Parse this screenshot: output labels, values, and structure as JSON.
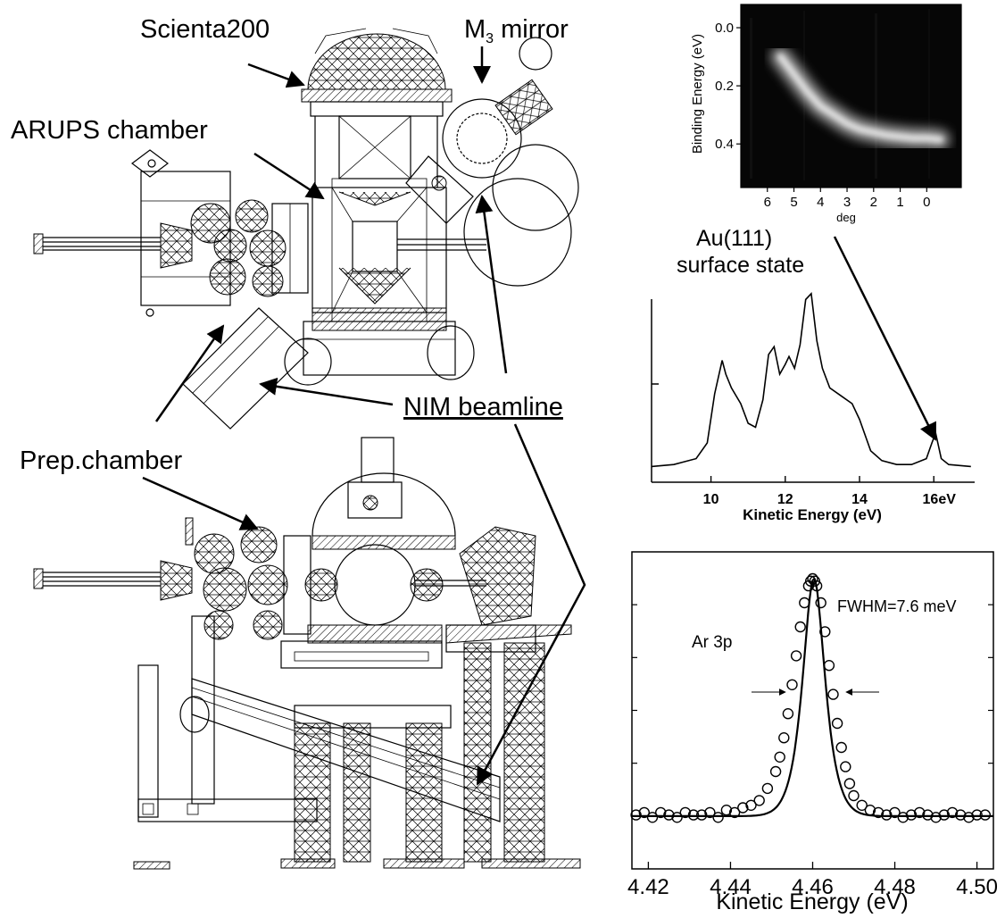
{
  "labels": {
    "scienta": "Scienta200",
    "m3_main": "M",
    "m3_sub": "3",
    "m3_rest": " mirror",
    "arups": "ARUPS chamber",
    "prep": "Prep.chamber",
    "nim": "NIM beamline",
    "au_line1": "Au(111)",
    "au_line2": "surface state",
    "ar3p": "Ar 3p",
    "fwhm": "FWHM=7.6 meV"
  },
  "chart_data": [
    {
      "type": "heatmap",
      "title": "",
      "xlabel": "deg",
      "ylabel": "Binding Energy (eV)",
      "x_ticks": [
        "6",
        "5",
        "4",
        "3",
        "2",
        "1",
        "0"
      ],
      "y_ticks": [
        "0.0",
        "0.2",
        "0.4"
      ],
      "xlim": [
        7,
        -1.3
      ],
      "ylim": [
        -0.08,
        0.55
      ],
      "band": {
        "angle_deg": [
          5.5,
          5.0,
          4.5,
          4.0,
          3.5,
          3.0,
          2.5,
          2.0,
          1.5,
          1.0,
          0.5,
          0.0,
          -0.5
        ],
        "binding_energy_eV": [
          0.1,
          0.16,
          0.22,
          0.27,
          0.3,
          0.33,
          0.35,
          0.36,
          0.37,
          0.375,
          0.38,
          0.38,
          0.385
        ]
      }
    },
    {
      "type": "line",
      "title": "",
      "xlabel": "Kinetic Energy (eV)",
      "x_ticks": [
        "10",
        "12",
        "14",
        "16eV"
      ],
      "xlim": [
        8.4,
        17.1
      ],
      "ylim": [
        0,
        1
      ],
      "series": [
        {
          "x": [
            8.4,
            9.0,
            9.6,
            9.9,
            10.1,
            10.3,
            10.4,
            10.55,
            10.8,
            11.0,
            11.2,
            11.4,
            11.55,
            11.7,
            11.85,
            12.0,
            12.1,
            12.25,
            12.4,
            12.55,
            12.7,
            12.85,
            13.0,
            13.2,
            13.5,
            13.8,
            14.0,
            14.3,
            14.6,
            15.0,
            15.4,
            15.8,
            15.95,
            16.05,
            16.2,
            16.4,
            17.0
          ],
          "y": [
            0.08,
            0.09,
            0.12,
            0.2,
            0.45,
            0.62,
            0.55,
            0.48,
            0.4,
            0.3,
            0.28,
            0.42,
            0.65,
            0.69,
            0.55,
            0.6,
            0.64,
            0.58,
            0.7,
            0.93,
            0.96,
            0.72,
            0.58,
            0.48,
            0.44,
            0.4,
            0.32,
            0.16,
            0.11,
            0.09,
            0.09,
            0.12,
            0.2,
            0.25,
            0.12,
            0.09,
            0.08
          ]
        }
      ]
    },
    {
      "type": "scatter",
      "title": "",
      "xlabel": "Kinetic Energy (eV)",
      "x_ticks": [
        "4.42",
        "4.44",
        "4.46",
        "4.48",
        "4.50"
      ],
      "xlim": [
        4.416,
        4.504
      ],
      "ylim": [
        0,
        1
      ],
      "peak_center": 4.4603,
      "fwhm_meV": 7.6,
      "points_x": [
        4.417,
        4.419,
        4.421,
        4.423,
        4.425,
        4.427,
        4.429,
        4.431,
        4.433,
        4.435,
        4.437,
        4.439,
        4.441,
        4.443,
        4.445,
        4.447,
        4.449,
        4.451,
        4.452,
        4.453,
        4.454,
        4.455,
        4.456,
        4.457,
        4.458,
        4.459,
        4.4595,
        4.46,
        4.4605,
        4.461,
        4.462,
        4.463,
        4.464,
        4.465,
        4.466,
        4.467,
        4.468,
        4.469,
        4.47,
        4.472,
        4.474,
        4.476,
        4.478,
        4.48,
        4.482,
        4.484,
        4.486,
        4.488,
        4.49,
        4.492,
        4.494,
        4.496,
        4.498,
        4.5,
        4.502
      ],
      "points_y": [
        0.02,
        0.03,
        0.01,
        0.03,
        0.02,
        0.01,
        0.03,
        0.02,
        0.02,
        0.03,
        0.01,
        0.04,
        0.03,
        0.05,
        0.06,
        0.08,
        0.13,
        0.2,
        0.26,
        0.34,
        0.44,
        0.56,
        0.68,
        0.8,
        0.9,
        0.97,
        0.99,
        1.0,
        0.99,
        0.97,
        0.9,
        0.78,
        0.64,
        0.52,
        0.4,
        0.3,
        0.22,
        0.15,
        0.1,
        0.06,
        0.04,
        0.03,
        0.02,
        0.03,
        0.01,
        0.02,
        0.03,
        0.02,
        0.01,
        0.02,
        0.03,
        0.02,
        0.01,
        0.02,
        0.02
      ]
    }
  ]
}
